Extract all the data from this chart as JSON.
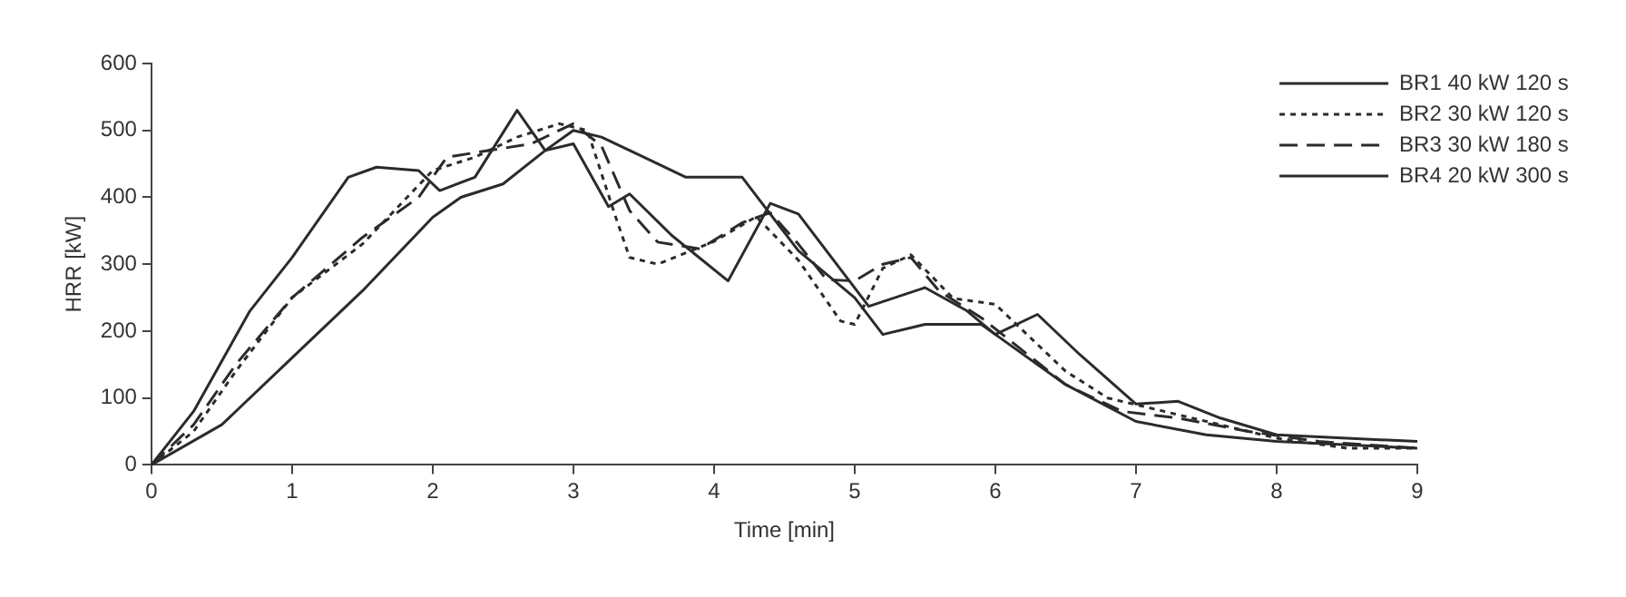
{
  "chart_data": {
    "type": "line",
    "xlabel": "Time [min]",
    "ylabel": "HRR [kW]",
    "xlim": [
      0,
      9
    ],
    "xticks": [
      0,
      1,
      2,
      3,
      4,
      5,
      6,
      7,
      8,
      9
    ],
    "ylim": [
      0,
      600
    ],
    "yticks": [
      0,
      100,
      200,
      300,
      400,
      500,
      600
    ],
    "grid": false,
    "legend": "top right",
    "marker": "none",
    "series": [
      {
        "name": "BR1 40 kW 120 s",
        "color": "#2b2b2b",
        "line_style": "solid",
        "x": [
          0,
          0.3,
          0.7,
          1.0,
          1.4,
          1.6,
          1.9,
          2.05,
          2.3,
          2.6,
          2.8,
          3.0,
          3.25,
          3.4,
          3.7,
          4.1,
          4.4,
          4.6,
          5.1,
          5.5,
          5.8,
          6.0,
          6.5,
          7.0,
          7.5,
          8.0,
          8.5,
          9.0
        ],
        "values": [
          0,
          80,
          230,
          310,
          430,
          445,
          440,
          410,
          430,
          530,
          470,
          480,
          386,
          405,
          343,
          275,
          391,
          375,
          237,
          265,
          230,
          195,
          120,
          65,
          45,
          35,
          30,
          25
        ]
      },
      {
        "name": "BR2 30 kW 120 s",
        "color": "#2b2b2b",
        "line_style": "dotted",
        "x": [
          0,
          0.3,
          0.6,
          1.0,
          1.5,
          2.0,
          2.3,
          2.6,
          2.9,
          3.1,
          3.3,
          3.4,
          3.6,
          4.0,
          4.3,
          4.6,
          4.9,
          5.0,
          5.2,
          5.4,
          5.7,
          6.0,
          6.2,
          6.5,
          6.8,
          7.2,
          7.6,
          8.0,
          8.5,
          9.0
        ],
        "values": [
          0,
          50,
          140,
          250,
          330,
          440,
          460,
          490,
          510,
          500,
          371,
          310,
          300,
          334,
          371,
          306,
          215,
          210,
          294,
          314,
          249,
          240,
          200,
          140,
          100,
          80,
          60,
          40,
          25,
          25
        ]
      },
      {
        "name": "BR3 30 kW 180 s",
        "color": "#2b2b2b",
        "line_style": "dashed",
        "x": [
          0,
          0.3,
          0.6,
          1.0,
          1.5,
          1.9,
          2.1,
          2.4,
          2.7,
          3.0,
          3.2,
          3.4,
          3.6,
          3.9,
          4.2,
          4.4,
          4.6,
          4.8,
          5.0,
          5.2,
          5.4,
          5.6,
          5.9,
          6.2,
          6.5,
          6.9,
          7.3,
          7.8,
          8.3,
          9.0
        ],
        "values": [
          0,
          60,
          150,
          250,
          340,
          400,
          460,
          470,
          480,
          510,
          477,
          380,
          333,
          323,
          362,
          377,
          330,
          277,
          275,
          300,
          310,
          260,
          220,
          170,
          120,
          80,
          70,
          50,
          35,
          25
        ]
      },
      {
        "name": "BR4 20 kW 300 s",
        "color": "#2b2b2b",
        "line_style": "solid",
        "x": [
          0,
          0.5,
          1.0,
          1.5,
          2.0,
          2.2,
          2.5,
          2.8,
          3.0,
          3.2,
          3.5,
          3.8,
          4.2,
          4.6,
          5.0,
          5.2,
          5.5,
          5.9,
          6.0,
          6.3,
          6.6,
          7.0,
          7.3,
          7.6,
          8.0,
          9.0
        ],
        "values": [
          0,
          60,
          160,
          260,
          370,
          400,
          420,
          470,
          500,
          490,
          460,
          430,
          430,
          320,
          250,
          195,
          210,
          210,
          195,
          225,
          165,
          91,
          95,
          70,
          45,
          35
        ]
      }
    ]
  }
}
